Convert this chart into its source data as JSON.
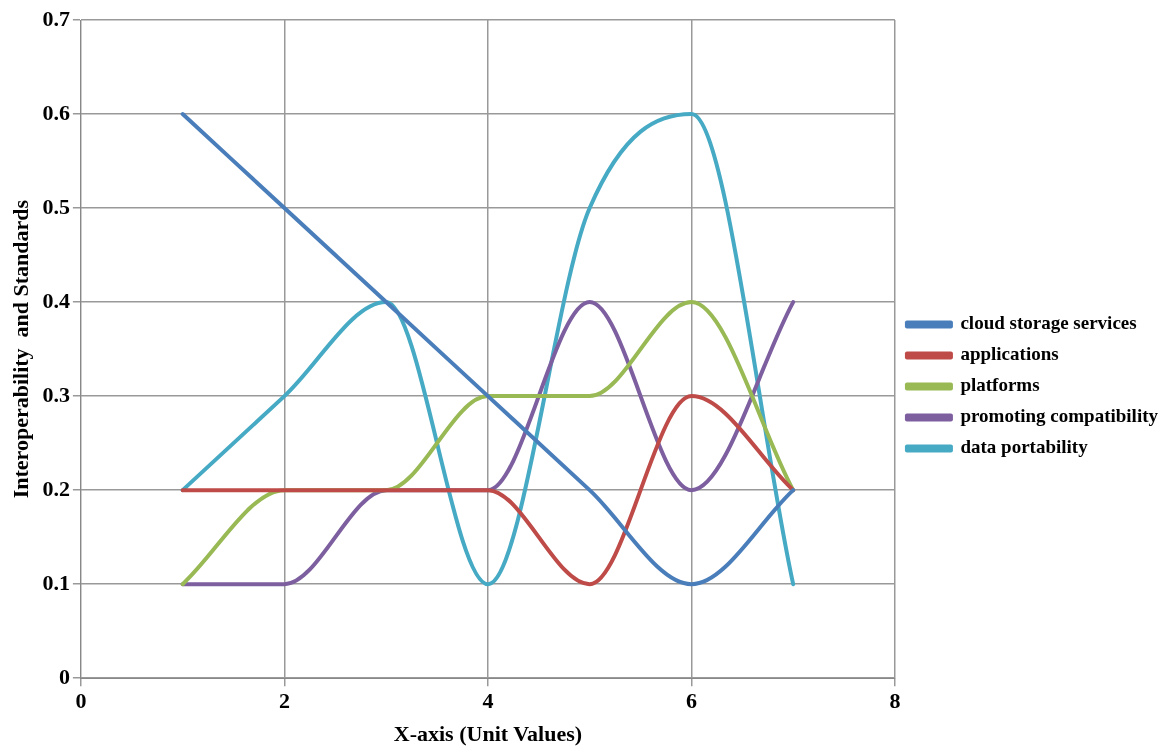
{
  "chart_data": {
    "type": "line",
    "xlabel": "X-axis (Unit Values)",
    "ylabel": "Interoperability  and Standards",
    "x": [
      1,
      2,
      3,
      4,
      5,
      6,
      7
    ],
    "series": [
      {
        "name": "cloud storage services",
        "color": "#4a7ebb",
        "values": [
          0.6,
          0.5,
          0.4,
          0.3,
          0.2,
          0.1,
          0.2
        ]
      },
      {
        "name": "applications",
        "color": "#be4b48",
        "values": [
          0.2,
          0.2,
          0.2,
          0.2,
          0.1,
          0.3,
          0.2
        ]
      },
      {
        "name": "platforms",
        "color": "#98b954",
        "values": [
          0.1,
          0.2,
          0.2,
          0.3,
          0.3,
          0.4,
          0.2
        ]
      },
      {
        "name": "promoting compatibility",
        "color": "#7d5fa0",
        "values": [
          0.1,
          0.1,
          0.2,
          0.2,
          0.4,
          0.2,
          0.4
        ]
      },
      {
        "name": "data portability",
        "color": "#46aac5",
        "values": [
          0.2,
          0.3,
          0.4,
          0.1,
          0.5,
          0.6,
          0.1
        ]
      }
    ],
    "xlim": [
      0,
      8
    ],
    "xticks": [
      0,
      2,
      4,
      6,
      8
    ],
    "ylim": [
      0,
      0.7
    ],
    "yticks": [
      0,
      0.1,
      0.2,
      0.3,
      0.4,
      0.5,
      0.6,
      0.7
    ],
    "grid": true,
    "legend": "right",
    "marker": "none",
    "line_style": "solid"
  }
}
